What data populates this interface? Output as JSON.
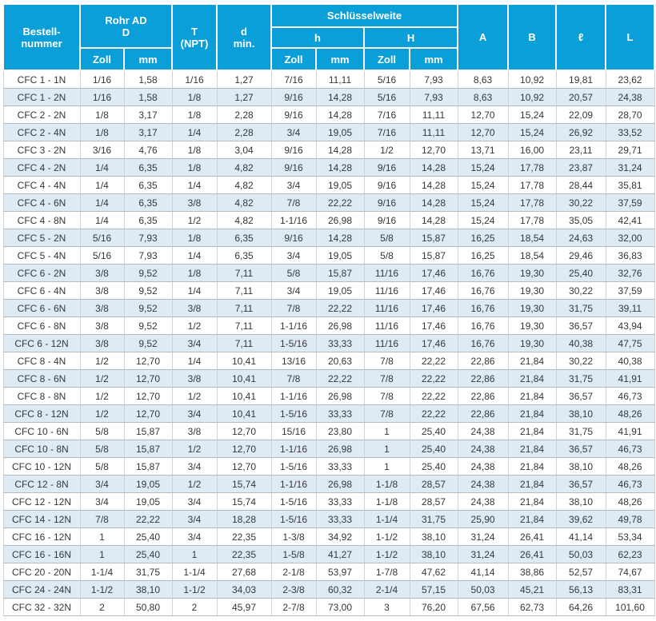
{
  "colors": {
    "header_bg": "#0a9fd8",
    "header_text": "#ffffff",
    "stripe_bg": "#dfebf4",
    "row_bg": "#ffffff",
    "grid_horizontal": "#b4bbc1",
    "grid_vertical": "#ccd3d9",
    "body_text": "#33373b"
  },
  "table": {
    "header": {
      "col_bestellnummer": [
        "Bestell-",
        "nummer"
      ],
      "col_rohr": [
        "Rohr AD",
        "D"
      ],
      "col_t": [
        "T",
        "(NPT)"
      ],
      "col_dmin": [
        "d",
        "min."
      ],
      "col_schluesselweite": "Schlüsselweite",
      "col_h": "h",
      "col_H": "H",
      "unit_zoll": "Zoll",
      "unit_mm": "mm",
      "col_A": "A",
      "col_B": "B",
      "col_l": "ℓ",
      "col_L": "L"
    },
    "rows": [
      [
        "CFC 1 - 1N",
        "1/16",
        "1,58",
        "1/16",
        "1,27",
        "7/16",
        "11,11",
        "5/16",
        "7,93",
        "8,63",
        "10,92",
        "19,81",
        "23,62"
      ],
      [
        "CFC 1 - 2N",
        "1/16",
        "1,58",
        "1/8",
        "1,27",
        "9/16",
        "14,28",
        "5/16",
        "7,93",
        "8,63",
        "10,92",
        "20,57",
        "24,38"
      ],
      [
        "CFC 2 - 2N",
        "1/8",
        "3,17",
        "1/8",
        "2,28",
        "9/16",
        "14,28",
        "7/16",
        "11,11",
        "12,70",
        "15,24",
        "22,09",
        "28,70"
      ],
      [
        "CFC 2 - 4N",
        "1/8",
        "3,17",
        "1/4",
        "2,28",
        "3/4",
        "19,05",
        "7/16",
        "11,11",
        "12,70",
        "15,24",
        "26,92",
        "33,52"
      ],
      [
        "CFC 3 - 2N",
        "3/16",
        "4,76",
        "1/8",
        "3,04",
        "9/16",
        "14,28",
        "1/2",
        "12,70",
        "13,71",
        "16,00",
        "23,11",
        "29,71"
      ],
      [
        "CFC 4 - 2N",
        "1/4",
        "6,35",
        "1/8",
        "4,82",
        "9/16",
        "14,28",
        "9/16",
        "14,28",
        "15,24",
        "17,78",
        "23,87",
        "31,24"
      ],
      [
        "CFC 4 - 4N",
        "1/4",
        "6,35",
        "1/4",
        "4,82",
        "3/4",
        "19,05",
        "9/16",
        "14,28",
        "15,24",
        "17,78",
        "28,44",
        "35,81"
      ],
      [
        "CFC 4 - 6N",
        "1/4",
        "6,35",
        "3/8",
        "4,82",
        "7/8",
        "22,22",
        "9/16",
        "14,28",
        "15,24",
        "17,78",
        "30,22",
        "37,59"
      ],
      [
        "CFC 4 - 8N",
        "1/4",
        "6,35",
        "1/2",
        "4,82",
        "1-1/16",
        "26,98",
        "9/16",
        "14,28",
        "15,24",
        "17,78",
        "35,05",
        "42,41"
      ],
      [
        "CFC 5 - 2N",
        "5/16",
        "7,93",
        "1/8",
        "6,35",
        "9/16",
        "14,28",
        "5/8",
        "15,87",
        "16,25",
        "18,54",
        "24,63",
        "32,00"
      ],
      [
        "CFC 5 - 4N",
        "5/16",
        "7,93",
        "1/4",
        "6,35",
        "3/4",
        "19,05",
        "5/8",
        "15,87",
        "16,25",
        "18,54",
        "29,46",
        "36,83"
      ],
      [
        "CFC 6 - 2N",
        "3/8",
        "9,52",
        "1/8",
        "7,11",
        "5/8",
        "15,87",
        "11/16",
        "17,46",
        "16,76",
        "19,30",
        "25,40",
        "32,76"
      ],
      [
        "CFC 6 - 4N",
        "3/8",
        "9,52",
        "1/4",
        "7,11",
        "3/4",
        "19,05",
        "11/16",
        "17,46",
        "16,76",
        "19,30",
        "30,22",
        "37,59"
      ],
      [
        "CFC 6 - 6N",
        "3/8",
        "9,52",
        "3/8",
        "7,11",
        "7/8",
        "22,22",
        "11/16",
        "17,46",
        "16,76",
        "19,30",
        "31,75",
        "39,11"
      ],
      [
        "CFC 6 - 8N",
        "3/8",
        "9,52",
        "1/2",
        "7,11",
        "1-1/16",
        "26,98",
        "11/16",
        "17,46",
        "16,76",
        "19,30",
        "36,57",
        "43,94"
      ],
      [
        "CFC 6 - 12N",
        "3/8",
        "9,52",
        "3/4",
        "7,11",
        "1-5/16",
        "33,33",
        "11/16",
        "17,46",
        "16,76",
        "19,30",
        "40,38",
        "47,75"
      ],
      [
        "CFC 8 - 4N",
        "1/2",
        "12,70",
        "1/4",
        "10,41",
        "13/16",
        "20,63",
        "7/8",
        "22,22",
        "22,86",
        "21,84",
        "30,22",
        "40,38"
      ],
      [
        "CFC 8 - 6N",
        "1/2",
        "12,70",
        "3/8",
        "10,41",
        "7/8",
        "22,22",
        "7/8",
        "22,22",
        "22,86",
        "21,84",
        "31,75",
        "41,91"
      ],
      [
        "CFC 8 - 8N",
        "1/2",
        "12,70",
        "1/2",
        "10,41",
        "1-1/16",
        "26,98",
        "7/8",
        "22,22",
        "22,86",
        "21,84",
        "36,57",
        "46,73"
      ],
      [
        "CFC 8 - 12N",
        "1/2",
        "12,70",
        "3/4",
        "10,41",
        "1-5/16",
        "33,33",
        "7/8",
        "22,22",
        "22,86",
        "21,84",
        "38,10",
        "48,26"
      ],
      [
        "CFC 10 - 6N",
        "5/8",
        "15,87",
        "3/8",
        "12,70",
        "15/16",
        "23,80",
        "1",
        "25,40",
        "24,38",
        "21,84",
        "31,75",
        "41,91"
      ],
      [
        "CFC 10 - 8N",
        "5/8",
        "15,87",
        "1/2",
        "12,70",
        "1-1/16",
        "26,98",
        "1",
        "25,40",
        "24,38",
        "21,84",
        "36,57",
        "46,73"
      ],
      [
        "CFC 10 - 12N",
        "5/8",
        "15,87",
        "3/4",
        "12,70",
        "1-5/16",
        "33,33",
        "1",
        "25,40",
        "24,38",
        "21,84",
        "38,10",
        "48,26"
      ],
      [
        "CFC 12 - 8N",
        "3/4",
        "19,05",
        "1/2",
        "15,74",
        "1-1/16",
        "26,98",
        "1-1/8",
        "28,57",
        "24,38",
        "21,84",
        "36,57",
        "46,73"
      ],
      [
        "CFC 12 - 12N",
        "3/4",
        "19,05",
        "3/4",
        "15,74",
        "1-5/16",
        "33,33",
        "1-1/8",
        "28,57",
        "24,38",
        "21,84",
        "38,10",
        "48,26"
      ],
      [
        "CFC 14 - 12N",
        "7/8",
        "22,22",
        "3/4",
        "18,28",
        "1-5/16",
        "33,33",
        "1-1/4",
        "31,75",
        "25,90",
        "21,84",
        "39,62",
        "49,78"
      ],
      [
        "CFC 16 - 12N",
        "1",
        "25,40",
        "3/4",
        "22,35",
        "1-3/8",
        "34,92",
        "1-1/2",
        "38,10",
        "31,24",
        "26,41",
        "41,14",
        "53,34"
      ],
      [
        "CFC 16 - 16N",
        "1",
        "25,40",
        "1",
        "22,35",
        "1-5/8",
        "41,27",
        "1-1/2",
        "38,10",
        "31,24",
        "26,41",
        "50,03",
        "62,23"
      ],
      [
        "CFC 20 - 20N",
        "1-1/4",
        "31,75",
        "1-1/4",
        "27,68",
        "2-1/8",
        "53,97",
        "1-7/8",
        "47,62",
        "41,14",
        "38,86",
        "52,57",
        "74,67"
      ],
      [
        "CFC 24 - 24N",
        "1-1/2",
        "38,10",
        "1-1/2",
        "34,03",
        "2-3/8",
        "60,32",
        "2-1/4",
        "57,15",
        "50,03",
        "45,21",
        "56,13",
        "83,31"
      ],
      [
        "CFC 32 - 32N",
        "2",
        "50,80",
        "2",
        "45,97",
        "2-7/8",
        "73,00",
        "3",
        "76,20",
        "67,56",
        "62,73",
        "64,26",
        "101,60"
      ]
    ]
  }
}
